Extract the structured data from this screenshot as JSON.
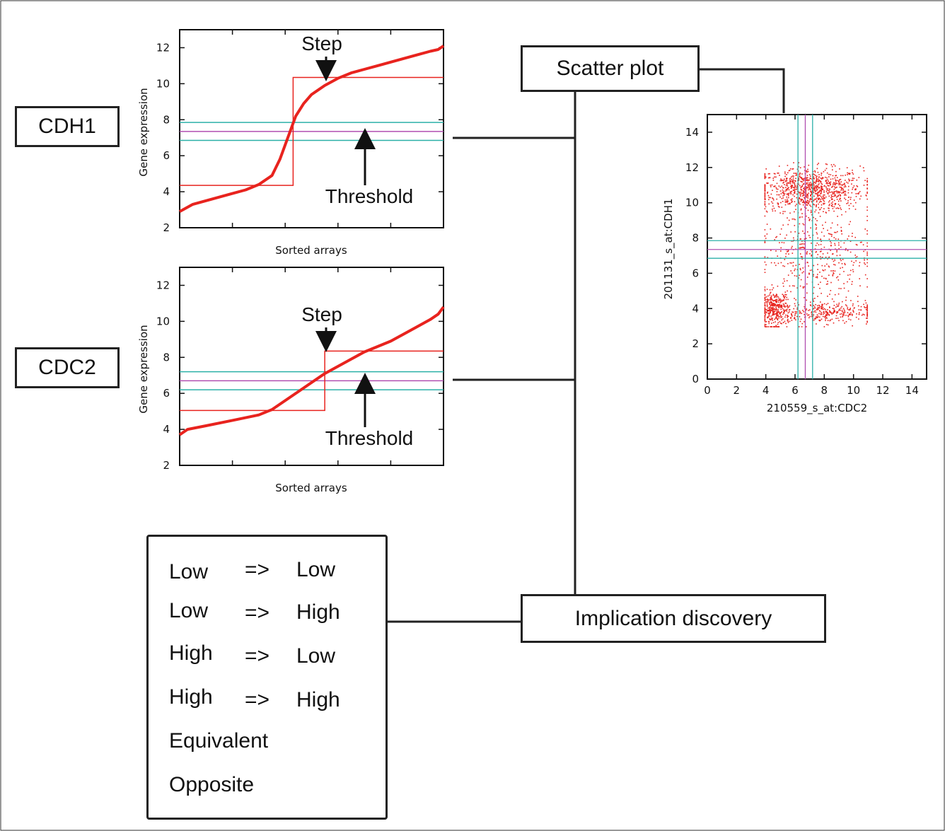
{
  "labels": {
    "cdh1": "CDH1",
    "cdc2": "CDC2",
    "scatter_plot": "Scatter plot",
    "implication_discovery": "Implication discovery"
  },
  "rules": [
    {
      "left": "Low",
      "arrow": "=>",
      "right": "Low"
    },
    {
      "left": "Low",
      "arrow": "=>",
      "right": "High"
    },
    {
      "left": "High",
      "arrow": "=>",
      "right": "Low"
    },
    {
      "left": "High",
      "arrow": "=>",
      "right": "High"
    },
    {
      "left": "Equivalent"
    },
    {
      "left": "Opposite"
    }
  ],
  "colors": {
    "curve": "#e8231e",
    "step": "#e8231e",
    "threshold": "#b04fb0",
    "threshold_band": "#2bb0a8",
    "connector": "#222222",
    "points": "#e8231e"
  },
  "chart_data": [
    {
      "id": "cdh1-sorted",
      "type": "line",
      "xlabel": "Sorted arrays",
      "ylabel": "Gene expression",
      "ylim": [
        2,
        13
      ],
      "yticks": [
        2,
        4,
        6,
        8,
        10,
        12
      ],
      "x": [
        0,
        0.05,
        0.1,
        0.15,
        0.2,
        0.25,
        0.3,
        0.35,
        0.38,
        0.41,
        0.44,
        0.47,
        0.5,
        0.55,
        0.6,
        0.65,
        0.7,
        0.75,
        0.8,
        0.85,
        0.9,
        0.95,
        0.98,
        1.0
      ],
      "y": [
        2.9,
        3.3,
        3.5,
        3.7,
        3.9,
        4.1,
        4.4,
        4.9,
        5.8,
        7.0,
        8.2,
        8.9,
        9.4,
        9.9,
        10.3,
        10.6,
        10.8,
        11.0,
        11.2,
        11.4,
        11.6,
        11.8,
        11.9,
        12.1
      ],
      "step": {
        "x_split": 0.43,
        "low": 4.35,
        "high": 10.35
      },
      "threshold": 7.35,
      "threshold_band": [
        6.85,
        7.85
      ],
      "annotations": [
        "Step",
        "Threshold"
      ]
    },
    {
      "id": "cdc2-sorted",
      "type": "line",
      "xlabel": "Sorted arrays",
      "ylabel": "Gene expression",
      "ylim": [
        2,
        13
      ],
      "yticks": [
        2,
        4,
        6,
        8,
        10,
        12
      ],
      "x": [
        0,
        0.03,
        0.1,
        0.2,
        0.3,
        0.35,
        0.4,
        0.45,
        0.5,
        0.55,
        0.6,
        0.65,
        0.7,
        0.75,
        0.8,
        0.85,
        0.9,
        0.95,
        0.98,
        1.0
      ],
      "y": [
        3.7,
        4.0,
        4.2,
        4.5,
        4.8,
        5.1,
        5.6,
        6.1,
        6.6,
        7.1,
        7.5,
        7.9,
        8.3,
        8.6,
        8.9,
        9.3,
        9.7,
        10.1,
        10.4,
        10.8
      ],
      "step": {
        "x_split": 0.55,
        "low": 5.05,
        "high": 8.35
      },
      "threshold": 6.7,
      "threshold_band": [
        6.2,
        7.2
      ],
      "annotations": [
        "Step",
        "Threshold"
      ]
    },
    {
      "id": "scatter",
      "type": "scatter",
      "xlabel": "210559_s_at:CDC2",
      "ylabel": "201131_s_at:CDH1",
      "xlim": [
        0,
        15
      ],
      "ylim": [
        0,
        15
      ],
      "xticks": [
        0,
        2,
        4,
        6,
        8,
        10,
        12,
        14
      ],
      "yticks": [
        0,
        2,
        4,
        6,
        8,
        10,
        12,
        14
      ],
      "x_threshold": 6.7,
      "x_band": [
        6.2,
        7.2
      ],
      "y_threshold": 7.35,
      "y_band": [
        6.85,
        7.85
      ],
      "clusters": [
        {
          "cx": 7.0,
          "cy": 10.8,
          "sx": 1.8,
          "sy": 0.6,
          "n": 900
        },
        {
          "cx": 4.6,
          "cy": 4.0,
          "sx": 0.5,
          "sy": 0.5,
          "n": 350
        },
        {
          "cx": 8.0,
          "cy": 3.8,
          "sx": 1.7,
          "sy": 0.3,
          "n": 300
        },
        {
          "cx": 7.4,
          "cy": 7.2,
          "sx": 1.9,
          "sy": 1.8,
          "n": 500
        }
      ],
      "x_range": [
        3.9,
        10.9
      ],
      "y_range": [
        3.0,
        12.3
      ]
    }
  ]
}
